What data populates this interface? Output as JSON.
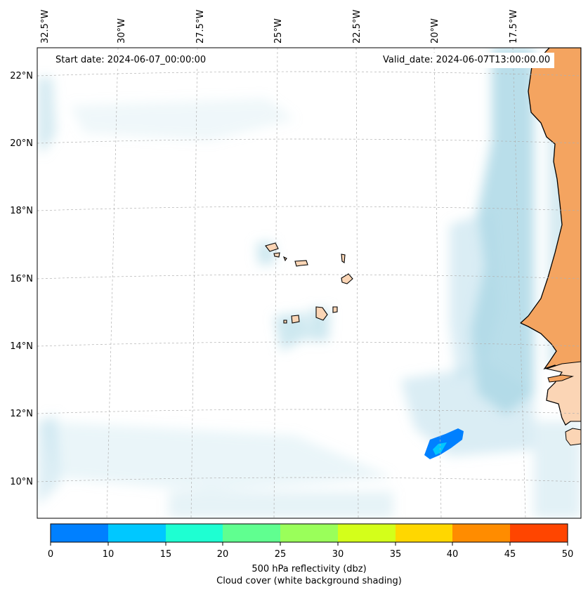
{
  "map": {
    "start_date": "Start date: 2024-06-07_00:00:00",
    "valid_date": "Valid_date: 2024-06-07T13:00:00.00",
    "lon_ticks": [
      "32.5°W",
      "30°W",
      "27.5°W",
      "25°W",
      "22.5°W",
      "20°W",
      "17.5°W"
    ],
    "lat_ticks": [
      "22°N",
      "20°N",
      "18°N",
      "16°N",
      "14°N",
      "12°N",
      "10°N"
    ],
    "colors": {
      "land": "#f4a460",
      "land_light": "#fbd5b5",
      "cloud": "#add8e6",
      "grid": "#b0b0b0",
      "coast": "#000000"
    }
  },
  "colorbar": {
    "title": "500 hPa reflectivity (dbz)",
    "subtitle": "Cloud cover (white background shading)",
    "ticks": [
      "0",
      "10",
      "15",
      "20",
      "25",
      "30",
      "35",
      "40",
      "45",
      "50"
    ],
    "colors": [
      "#0080ff",
      "#00c8ff",
      "#1effd2",
      "#60ff90",
      "#9aff5a",
      "#d4ff1a",
      "#ffd700",
      "#ff8c00",
      "#ff4500"
    ]
  }
}
